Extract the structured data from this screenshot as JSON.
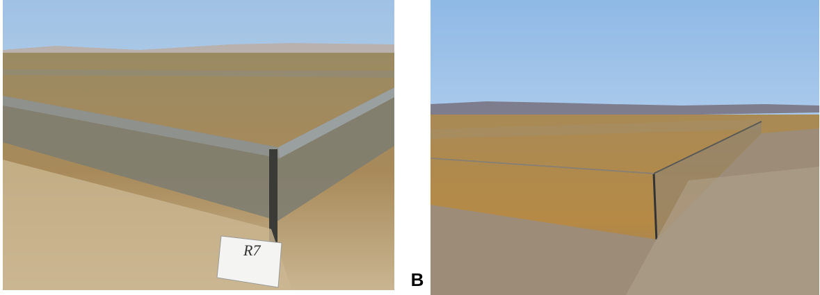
{
  "panel_label": "B",
  "sign_text": "R7"
}
